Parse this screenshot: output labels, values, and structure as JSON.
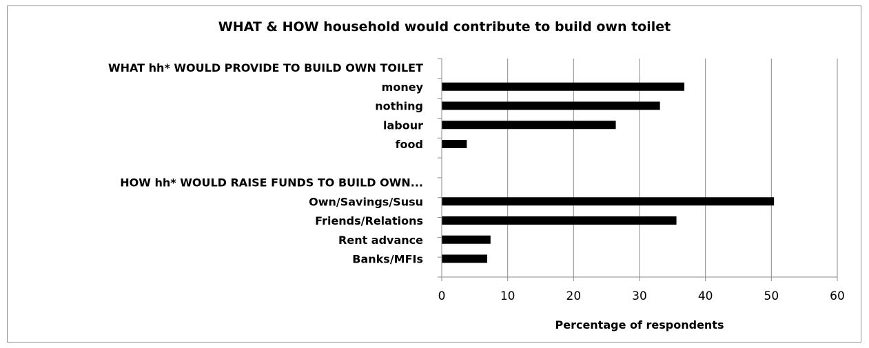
{
  "chart_data": {
    "type": "bar",
    "orientation": "horizontal",
    "title": "WHAT & HOW household would contribute to build own toilet",
    "xlabel": "Percentage of respondents",
    "ylabel": "",
    "xlim": [
      0,
      60
    ],
    "x_ticks": [
      0,
      10,
      20,
      30,
      40,
      50,
      60
    ],
    "grid": "vertical",
    "legend": "none",
    "bar_color": "#000000",
    "categories": [
      "WHAT hh* WOULD PROVIDE TO BUILD OWN TOILET",
      "money",
      "nothing",
      "labour",
      "food",
      "",
      "HOW hh* WOULD RAISE FUNDS TO BUILD OWN...",
      "Own/Savings/Susu",
      "Friends/Relations",
      "Rent advance",
      "Banks/MFIs"
    ],
    "values": [
      null,
      36.8,
      33.1,
      26.4,
      3.8,
      null,
      null,
      50.4,
      35.6,
      7.4,
      6.9
    ]
  }
}
